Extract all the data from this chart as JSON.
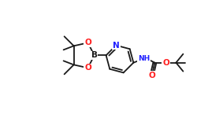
{
  "bg_color": "#ffffff",
  "bond_color": "#1a1a1a",
  "atom_color_N": "#2020ff",
  "atom_color_O": "#ff2020",
  "atom_color_B": "#1a1a1a",
  "bond_lw": 1.3,
  "font_size_atom": 6.5,
  "fig_width": 2.5,
  "fig_height": 1.5,
  "dpi": 100,
  "xlim": [
    0,
    250
  ],
  "ylim": [
    0,
    150
  ]
}
